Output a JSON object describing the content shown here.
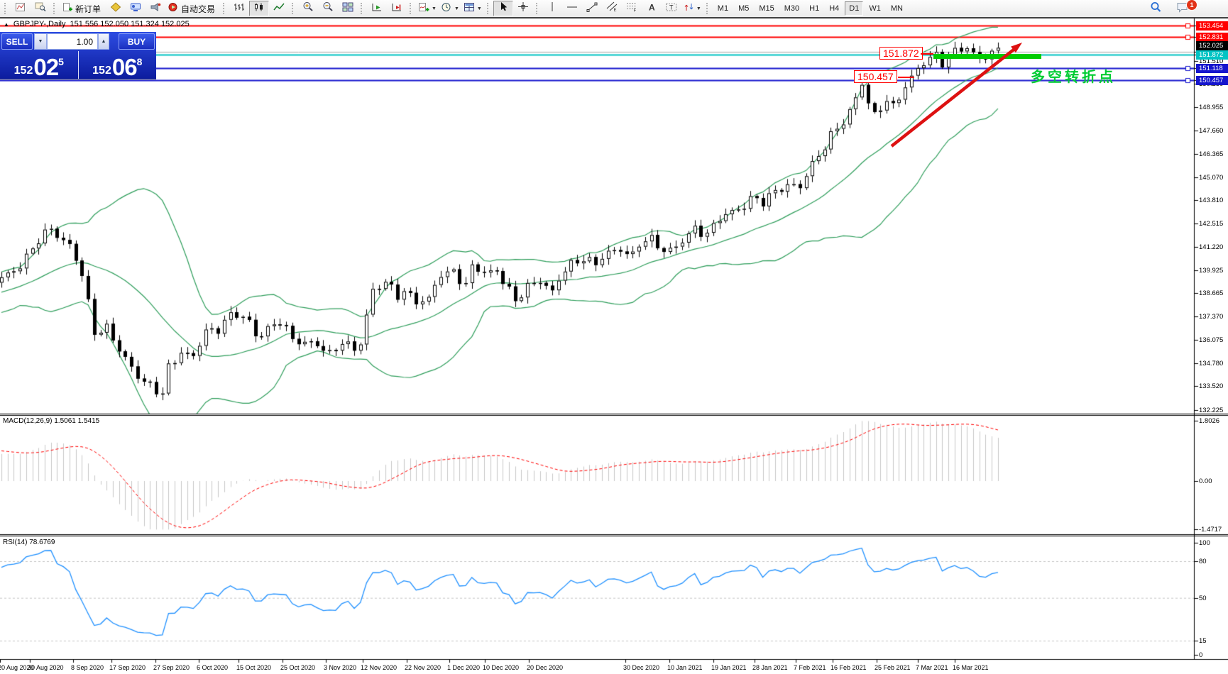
{
  "toolbar": {
    "labels": {
      "new_order": "新订单",
      "autotrading": "自动交易"
    },
    "timeframes": [
      "M1",
      "M5",
      "M15",
      "M30",
      "H1",
      "H4",
      "D1",
      "W1",
      "MN"
    ],
    "active_timeframe": "D1",
    "chat_badge": "1"
  },
  "chart_header": {
    "collapse_arrow": "▲",
    "title": "GBPJPY-,Daily",
    "ohlc_text": "151.556 152.050 151.324 152.025"
  },
  "one_click": {
    "sell_label": "SELL",
    "buy_label": "BUY",
    "volume": "1.00",
    "spin_down": "▼",
    "spin_up": "▲",
    "sell_price": {
      "small": "152",
      "big": "02",
      "sup": "5"
    },
    "buy_price": {
      "small": "152",
      "big": "06",
      "sup": "8"
    }
  },
  "price_axis": {
    "ticks": [
      "151.510",
      "150.250",
      "148.955",
      "147.660",
      "146.365",
      "145.070",
      "143.810",
      "142.515",
      "141.220",
      "139.925",
      "138.665",
      "137.370",
      "136.075",
      "134.780",
      "133.520",
      "132.225"
    ],
    "line_labels": [
      {
        "text": "153.454",
        "price": 153.454,
        "bg": "#ff0000",
        "fg": "#ffffff"
      },
      {
        "text": "152.831",
        "price": 152.831,
        "bg": "#ff0000",
        "fg": "#ffffff"
      },
      {
        "text": "152.025",
        "price": 152.025,
        "bg": "#000000",
        "fg": "#ffffff"
      },
      {
        "text": "151.872",
        "price": 151.872,
        "bg": "#00c4c4",
        "fg": "#ffffff"
      },
      {
        "text": "151.118",
        "price": 151.118,
        "bg": "#1515cd",
        "fg": "#ffffff"
      },
      {
        "text": "150.457",
        "price": 150.457,
        "bg": "#1515cd",
        "fg": "#ffffff"
      }
    ]
  },
  "hlines": [
    {
      "price": 153.454,
      "color": "#ff0000",
      "width": 2,
      "marker": true
    },
    {
      "price": 152.831,
      "color": "#ff0000",
      "width": 2,
      "marker": true
    },
    {
      "price": 152.025,
      "color": "#a8a8a8",
      "width": 1,
      "marker": false
    },
    {
      "price": 151.872,
      "color": "#00c4c4",
      "width": 2,
      "marker": false
    },
    {
      "price": 151.118,
      "color": "#1515cd",
      "width": 2,
      "marker": true
    },
    {
      "price": 150.457,
      "color": "#1515cd",
      "width": 2,
      "marker": true
    }
  ],
  "macd_panel": {
    "label": "MACD(12,26,9) 1.5061 1.5415",
    "axis_labels": [
      "1.8026",
      "0.00",
      "-1.4717"
    ],
    "histogram_color": "#c8c8c8",
    "signal_color": "#ff0000"
  },
  "rsi_panel": {
    "label": "RSI(14) 78.6769",
    "axis_labels": [
      "100",
      "80",
      "50",
      "15",
      "0"
    ],
    "levels": [
      80,
      50,
      15
    ],
    "line_color": "#1e90ff",
    "level_color": "#c4c4c4"
  },
  "date_axis": {
    "labels": [
      "20 Aug 2020",
      "30 Aug 2020",
      "8 Sep 2020",
      "17 Sep 2020",
      "27 Sep 2020",
      "6 Oct 2020",
      "15 Oct 2020",
      "25 Oct 2020",
      "3 Nov 2020",
      "12 Nov 2020",
      "22 Nov 2020",
      "1 Dec 2020",
      "10 Dec 2020",
      "20 Dec 2020",
      "30 Dec 2020",
      "10 Jan 2021",
      "19 Jan 2021",
      "28 Jan 2021",
      "7 Feb 2021",
      "16 Feb 2021",
      "25 Feb 2021",
      "7 Mar 2021",
      "16 Mar 2021"
    ]
  },
  "annotations": {
    "callout_high": {
      "text": "151.872"
    },
    "callout_low": {
      "text": "150.457"
    },
    "support_bar_color": "#00cc00",
    "arrow_color": "#dd1111",
    "note": {
      "text": "多空转折点",
      "color": "#00cc33"
    }
  },
  "chart_data": {
    "type": "candlestick",
    "symbol": "GBPJPY",
    "period": "Daily",
    "ohlc_current": {
      "open": 151.556,
      "high": 152.05,
      "low": 151.324,
      "close": 152.025
    },
    "bid": 152.025,
    "ask": 152.068,
    "visible_bars": 162,
    "warmup_bars": 40,
    "close_keypoints": [
      [
        -40,
        134.0
      ],
      [
        -28,
        135.6
      ],
      [
        -18,
        137.8
      ],
      [
        -10,
        138.9
      ],
      [
        -4,
        139.2
      ],
      [
        -1,
        139.3
      ],
      [
        0,
        139.4
      ],
      [
        3,
        140.3
      ],
      [
        8,
        142.3
      ],
      [
        11,
        141.3
      ],
      [
        13,
        139.6
      ],
      [
        15,
        136.6
      ],
      [
        17,
        136.8
      ],
      [
        19,
        135.4
      ],
      [
        22,
        134.2
      ],
      [
        25,
        133.2
      ],
      [
        26,
        133.0
      ],
      [
        27,
        134.6
      ],
      [
        29,
        135.5
      ],
      [
        31,
        135.1
      ],
      [
        33,
        136.5
      ],
      [
        35,
        136.8
      ],
      [
        37,
        137.5
      ],
      [
        40,
        137.1
      ],
      [
        41,
        136.4
      ],
      [
        43,
        136.7
      ],
      [
        45,
        137.0
      ],
      [
        47,
        136.2
      ],
      [
        50,
        135.9
      ],
      [
        53,
        135.3
      ],
      [
        55,
        136.1
      ],
      [
        57,
        135.5
      ],
      [
        58,
        135.8
      ],
      [
        60,
        138.9
      ],
      [
        62,
        139.4
      ],
      [
        64,
        138.4
      ],
      [
        65,
        138.7
      ],
      [
        67,
        138.3
      ],
      [
        69,
        138.4
      ],
      [
        71,
        139.6
      ],
      [
        73,
        139.9
      ],
      [
        75,
        139.2
      ],
      [
        76,
        140.1
      ],
      [
        78,
        139.7
      ],
      [
        80,
        140.0
      ],
      [
        82,
        138.9
      ],
      [
        83,
        138.1
      ],
      [
        85,
        139.0
      ],
      [
        87,
        139.5
      ],
      [
        89,
        138.7
      ],
      [
        91,
        139.9
      ],
      [
        92,
        140.3
      ],
      [
        94,
        140.7
      ],
      [
        96,
        140.2
      ],
      [
        98,
        140.9
      ],
      [
        100,
        141.2
      ],
      [
        102,
        140.7
      ],
      [
        103,
        141.3
      ],
      [
        105,
        141.7
      ],
      [
        107,
        141.1
      ],
      [
        109,
        141.1
      ],
      [
        111,
        141.9
      ],
      [
        112,
        142.3
      ],
      [
        114,
        142.0
      ],
      [
        116,
        142.7
      ],
      [
        118,
        143.2
      ],
      [
        120,
        143.6
      ],
      [
        121,
        143.9
      ],
      [
        123,
        143.6
      ],
      [
        125,
        144.4
      ],
      [
        127,
        144.7
      ],
      [
        129,
        144.4
      ],
      [
        130,
        145.2
      ],
      [
        132,
        146.4
      ],
      [
        134,
        147.4
      ],
      [
        136,
        148.0
      ],
      [
        138,
        149.5
      ],
      [
        139,
        150.4
      ],
      [
        140,
        149.3
      ],
      [
        141,
        148.4
      ],
      [
        142,
        148.8
      ],
      [
        143,
        149.3
      ],
      [
        144,
        149.0
      ],
      [
        146,
        150.2
      ],
      [
        147,
        150.6
      ],
      [
        149,
        151.3
      ],
      [
        150,
        151.7
      ],
      [
        151,
        151.9
      ],
      [
        152,
        151.5
      ],
      [
        153,
        151.8
      ],
      [
        154,
        152.0
      ],
      [
        156,
        152.15
      ],
      [
        158,
        151.75
      ],
      [
        160,
        151.95
      ],
      [
        161,
        152.02
      ]
    ],
    "bollinger": {
      "period": 20,
      "deviation": 2,
      "color": "#2e9e5b"
    },
    "macd": {
      "fast": 12,
      "slow": 26,
      "signal": 9,
      "value": 1.5061,
      "signal_value": 1.5415
    },
    "rsi": {
      "period": 14,
      "value": 78.6769
    },
    "candle_up_fill": "#ffffff",
    "candle_down_fill": "#000000",
    "candle_outline": "#000000"
  }
}
